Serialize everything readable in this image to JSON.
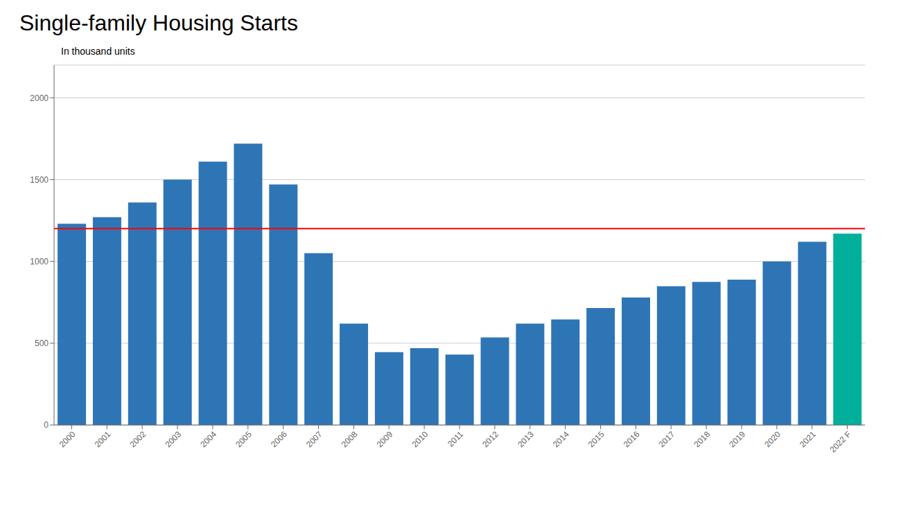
{
  "chart_data": {
    "type": "bar",
    "title": "Single-family Housing Starts",
    "subtitle": "In thousand units",
    "categories": [
      "2000",
      "2001",
      "2002",
      "2003",
      "2004",
      "2005",
      "2006",
      "2007",
      "2008",
      "2009",
      "2010",
      "2011",
      "2012",
      "2013",
      "2014",
      "2015",
      "2016",
      "2017",
      "2018",
      "2019",
      "2020",
      "2021",
      "2022 F"
    ],
    "values": [
      1230,
      1270,
      1360,
      1500,
      1610,
      1720,
      1470,
      1050,
      620,
      445,
      470,
      430,
      535,
      620,
      645,
      715,
      780,
      848,
      875,
      888,
      1000,
      1120,
      1170
    ],
    "colors": [
      "#2E75B6",
      "#2E75B6",
      "#2E75B6",
      "#2E75B6",
      "#2E75B6",
      "#2E75B6",
      "#2E75B6",
      "#2E75B6",
      "#2E75B6",
      "#2E75B6",
      "#2E75B6",
      "#2E75B6",
      "#2E75B6",
      "#2E75B6",
      "#2E75B6",
      "#2E75B6",
      "#2E75B6",
      "#2E75B6",
      "#2E75B6",
      "#2E75B6",
      "#2E75B6",
      "#2E75B6",
      "#00B09A"
    ],
    "reference_line": {
      "y": 1200,
      "color": "red"
    },
    "ylim": [
      0,
      2200
    ],
    "yticks": [
      0,
      500,
      1000,
      1500,
      2000
    ],
    "grid": true
  }
}
